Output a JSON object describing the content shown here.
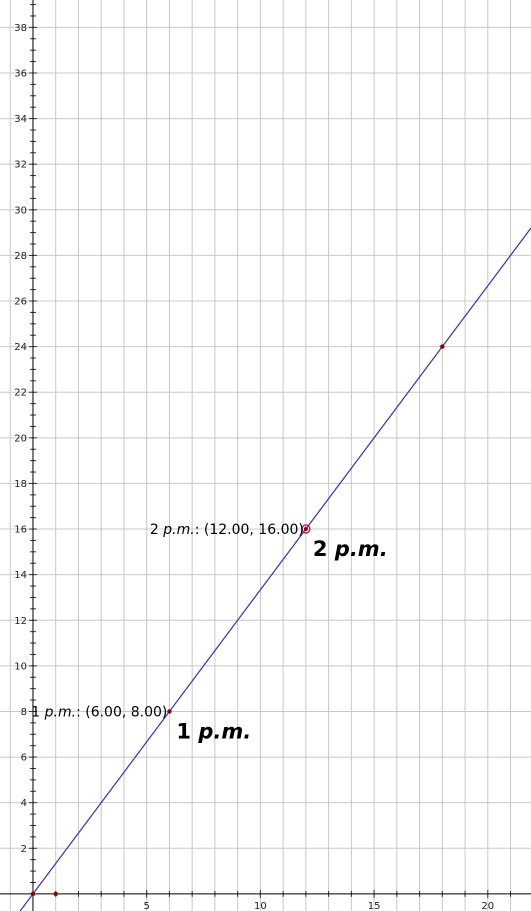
{
  "chart_data": {
    "type": "line",
    "title": "",
    "xlabel": "",
    "ylabel": "",
    "xlim": [
      -1.45,
      21.9
    ],
    "ylim": [
      -0.75,
      39.2
    ],
    "grid": true,
    "x_ticks": [
      5,
      10,
      15,
      20
    ],
    "y_ticks": [
      2,
      4,
      6,
      8,
      10,
      12,
      14,
      16,
      18,
      20,
      22,
      24,
      26,
      28,
      30,
      32,
      34,
      36,
      38
    ],
    "colors": {
      "line": "#3b2fa6",
      "point": "#8b0000",
      "highlight": "#cc1177",
      "grid": "#c8c8c8",
      "axis": "#000000"
    },
    "series": [
      {
        "x": [
          0,
          6,
          12,
          18
        ],
        "y": [
          0,
          8,
          16,
          24
        ]
      }
    ],
    "points": [
      {
        "x": 0,
        "y": 0
      },
      {
        "x": 1,
        "y": 0
      },
      {
        "x": 6,
        "y": 8
      },
      {
        "x": 12,
        "y": 16,
        "highlight": true
      },
      {
        "x": 18,
        "y": 24
      }
    ],
    "annotations": [
      {
        "prefix": "1 ",
        "em": "p.m.",
        "suffix": ": (6.00, 8.00)",
        "x": 6,
        "y": 8,
        "style": "small"
      },
      {
        "prefix": "2 ",
        "em": "p.m.",
        "suffix": ": (12.00, 16.00)",
        "x": 12,
        "y": 16,
        "style": "small"
      },
      {
        "prefix": "1 ",
        "em": "p.m.",
        "suffix": "",
        "x": 6,
        "y": 8,
        "style": "big"
      },
      {
        "prefix": "2 ",
        "em": "p.m.",
        "suffix": "",
        "x": 12,
        "y": 16,
        "style": "big"
      }
    ]
  }
}
